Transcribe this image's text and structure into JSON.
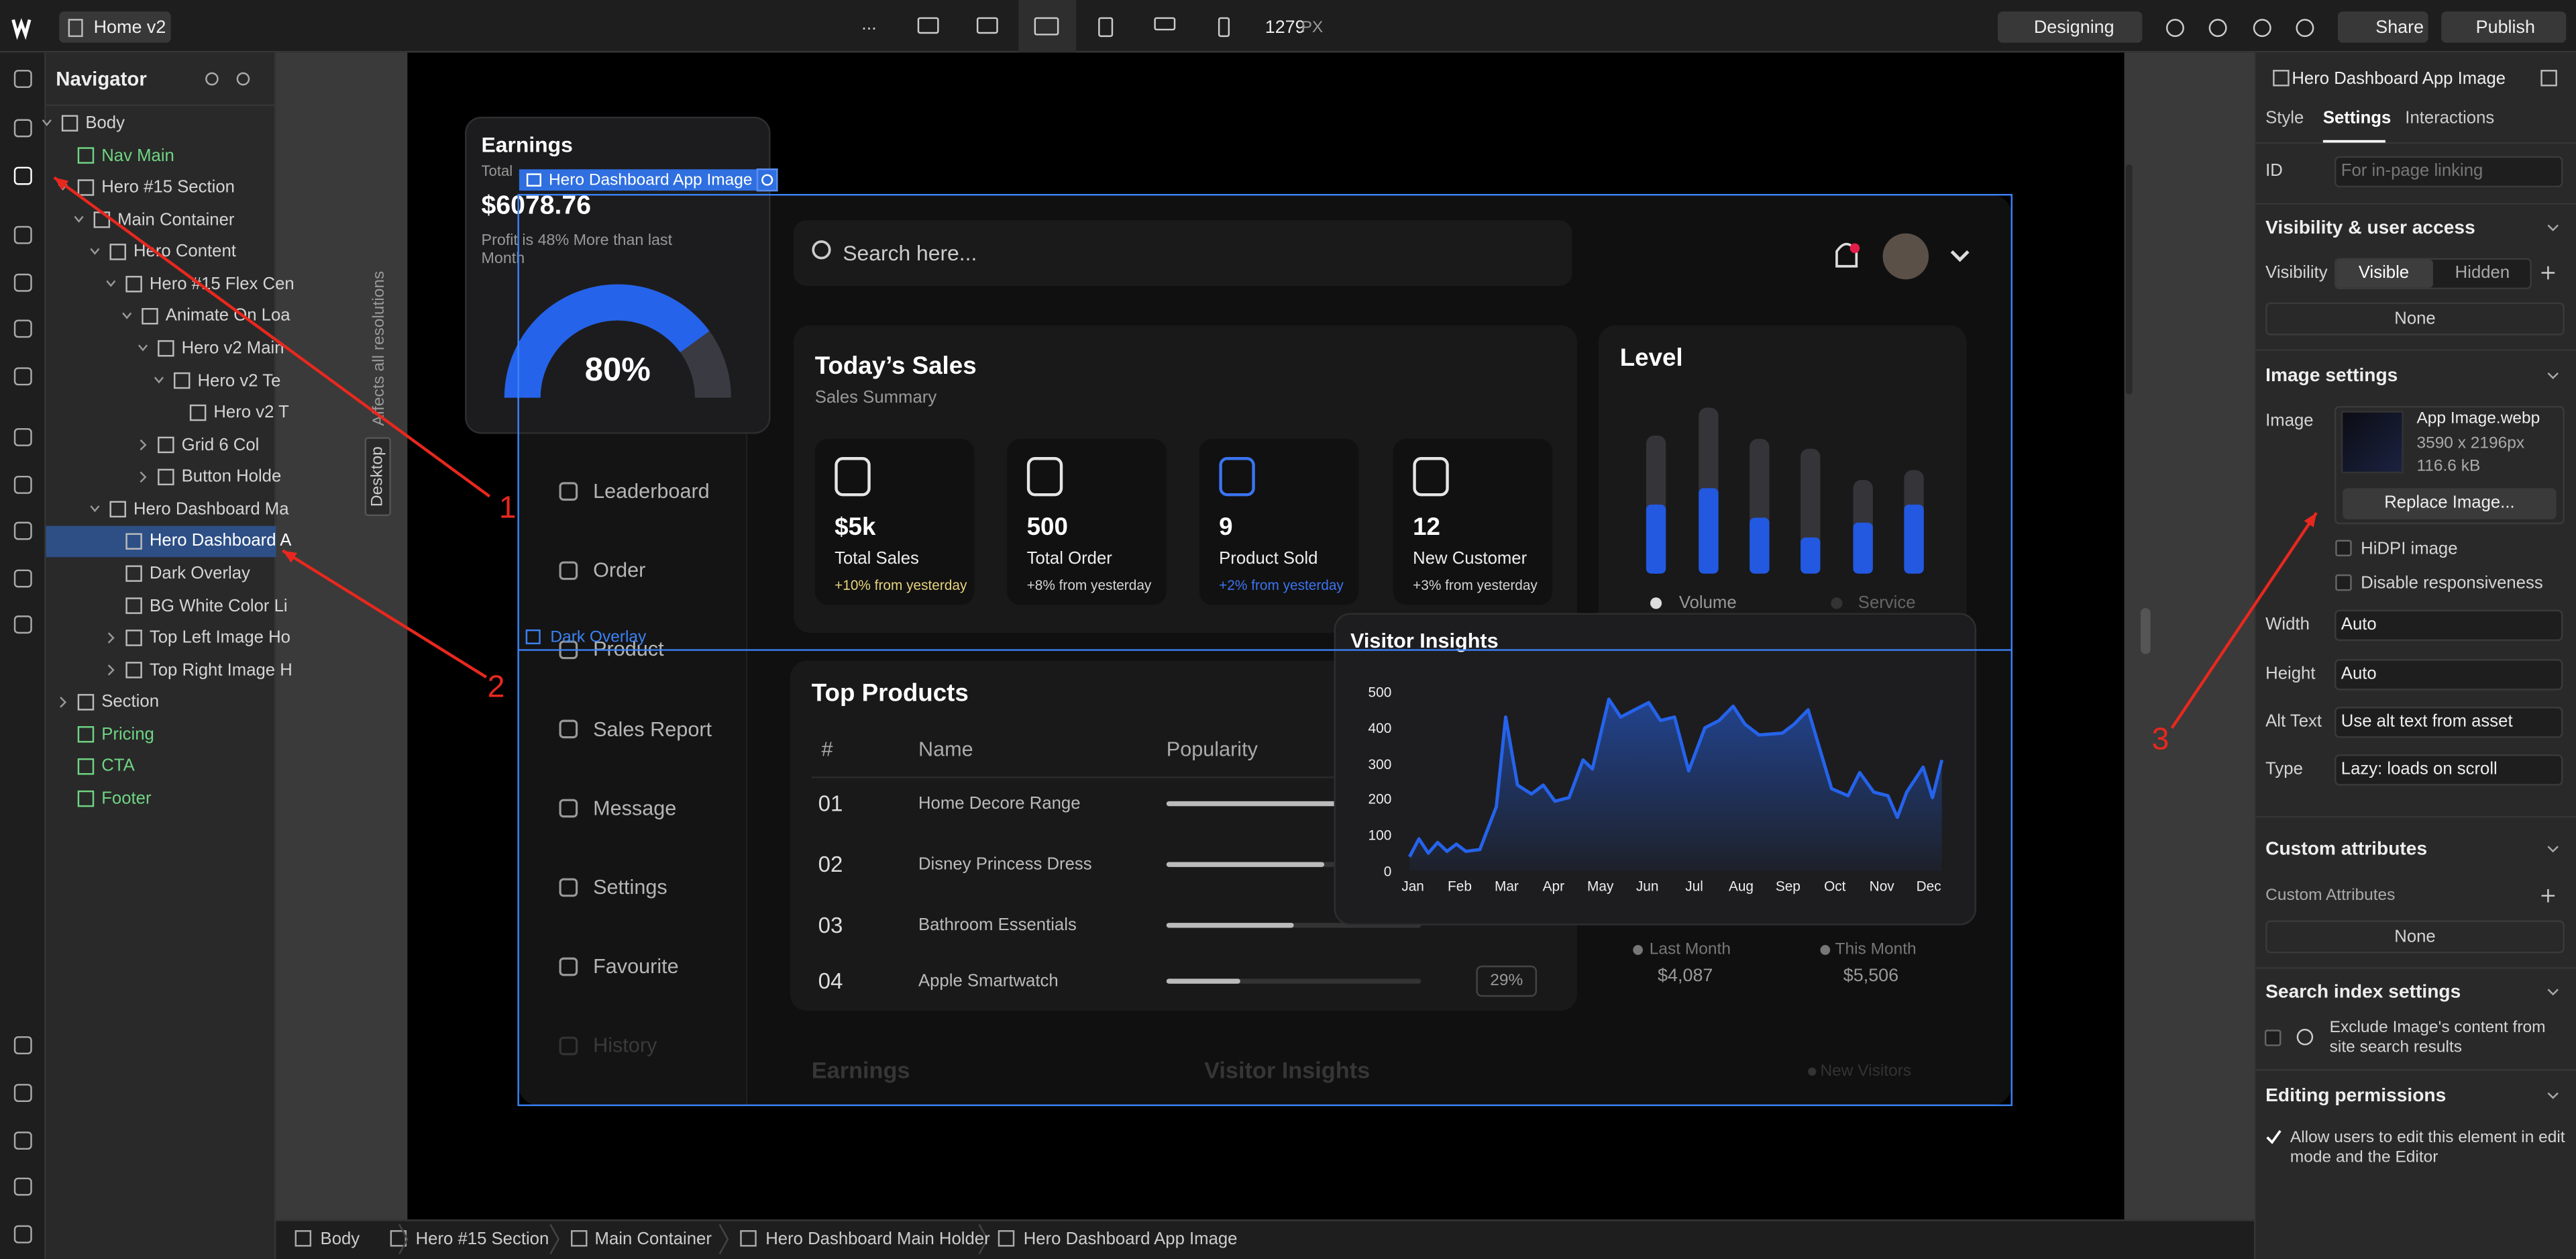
{
  "topbar": {
    "file": "Home v2",
    "more": "...",
    "width": "1279",
    "unit": "PX",
    "mode": "Designing",
    "share": "Share",
    "publish": "Publish"
  },
  "navigator": {
    "title": "Navigator",
    "tree": {
      "label": "Body",
      "children": [
        {
          "label": "Nav Main",
          "color": "#6fd483"
        },
        {
          "label": "Hero #15 Section",
          "children": [
            {
              "label": "Main Container",
              "children": [
                {
                  "label": "Hero Content",
                  "children": [
                    {
                      "label": "Hero #15 Flex Cen",
                      "children": [
                        {
                          "label": "Animate On Loa",
                          "children": [
                            {
                              "label": "Hero v2 Main",
                              "children": [
                                {
                                  "label": "Hero v2 Te",
                                  "children": [
                                    {
                                      "label": "Hero v2 T"
                                    }
                                  ]
                                }
                              ]
                            },
                            {
                              "label": "Grid 6 Col",
                              "collapsed": true
                            },
                            {
                              "label": "Button Holde",
                              "collapsed": true
                            }
                          ]
                        }
                      ]
                    }
                  ]
                },
                {
                  "label": "Hero Dashboard Ma",
                  "children": [
                    {
                      "label": "Hero Dashboard A",
                      "selected": true
                    },
                    {
                      "label": "Dark Overlay"
                    },
                    {
                      "label": "BG White Color Li"
                    },
                    {
                      "label": "Top Left Image Ho",
                      "collapsed": true
                    },
                    {
                      "label": "Top Right Image H",
                      "collapsed": true
                    }
                  ]
                }
              ]
            }
          ]
        },
        {
          "label": "Section",
          "collapsed": true
        },
        {
          "label": "Pricing",
          "color": "#6fd483"
        },
        {
          "label": "CTA",
          "color": "#6fd483"
        },
        {
          "label": "Footer",
          "color": "#6fd483"
        }
      ]
    }
  },
  "canvas": {
    "side_note": "Affects all resolutions",
    "breakpoint": "Desktop",
    "selected_tag": "Hero Dashboard App Image",
    "overlay_tag": "Dark Overlay",
    "dashboard": {
      "earnings": {
        "title": "Earnings",
        "subtitle": "Total",
        "amount": "$6078.76",
        "note": "Profit is 48% More than last Month",
        "gauge": {
          "value": 80,
          "label": "80%",
          "range": [
            0,
            100
          ]
        }
      },
      "search": "Search here...",
      "sales": {
        "title": "Today’s Sales",
        "subtitle": "Sales Summary",
        "cards": [
          {
            "value": "$5k",
            "label": "Total Sales",
            "change": "+10% from yesterday",
            "color": "#e6d37c"
          },
          {
            "value": "500",
            "label": "Total Order",
            "change": "+8% from yesterday",
            "color": "#d4d4d4"
          },
          {
            "value": "9",
            "label": "Product Sold",
            "change": "+2% from yesterday",
            "color": "#3b74f0"
          },
          {
            "value": "12",
            "label": "New Customer",
            "change": "+3% from yesterday",
            "color": "#d4d4d4"
          }
        ]
      },
      "level": {
        "title": "Level",
        "total": [
          84,
          101,
          82,
          76,
          57,
          63
        ],
        "volume": [
          42,
          52,
          34,
          22,
          31,
          42
        ],
        "legend": [
          "Volume",
          "Service"
        ]
      },
      "menu": [
        "Leaderboard",
        "Order",
        "Product",
        "Sales Report",
        "Message",
        "Settings",
        "Favourite",
        "History"
      ],
      "top_products": {
        "title": "Top Products",
        "columns": [
          "#",
          "Name",
          "Popularity"
        ],
        "rows": [
          [
            "01",
            "Home Decore Range"
          ],
          [
            "02",
            "Disney Princess Dress"
          ],
          [
            "03",
            "Bathroom Essentials"
          ],
          [
            "04",
            "Apple Smartwatch"
          ]
        ],
        "popularity": [
          70,
          62,
          50,
          29
        ],
        "popularity_labels": [
          null,
          null,
          null,
          "29%"
        ],
        "range": [
          0,
          100
        ]
      },
      "visitor_insights": {
        "type": "area",
        "title": "Visitor Insights",
        "months": [
          "Jan",
          "Feb",
          "Mar",
          "Apr",
          "May",
          "Jun",
          "Jul",
          "Aug",
          "Sep",
          "Oct",
          "Nov",
          "Dec"
        ],
        "ylim": [
          0,
          500
        ],
        "yticks": [
          0,
          100,
          200,
          300,
          400,
          500
        ],
        "xlim": [
          0,
          11.35
        ],
        "x": [
          0,
          0.2,
          0.4,
          0.6,
          0.8,
          1,
          1.2,
          1.5,
          1.85,
          2.05,
          2.3,
          2.6,
          2.85,
          3.1,
          3.4,
          3.7,
          3.9,
          4.25,
          4.5,
          4.8,
          5.1,
          5.35,
          5.65,
          5.95,
          6.3,
          6.6,
          6.9,
          7.15,
          7.45,
          7.95,
          8.2,
          8.5,
          9.0,
          9.35,
          9.6,
          9.9,
          10.2,
          10.4,
          10.6,
          10.95,
          11.15,
          11.35
        ],
        "values": [
          40,
          90,
          50,
          80,
          55,
          75,
          55,
          60,
          180,
          430,
          240,
          215,
          240,
          195,
          205,
          310,
          285,
          480,
          430,
          450,
          470,
          420,
          430,
          280,
          400,
          420,
          460,
          410,
          380,
          385,
          410,
          450,
          230,
          210,
          275,
          220,
          210,
          150,
          220,
          290,
          205,
          310
        ],
        "color": "#2563eb"
      },
      "stats": {
        "last_label": "Last Month",
        "this_label": "This Month",
        "last_value": "$4,087",
        "this_value": "$5,506"
      },
      "faded": {
        "earnings": "Earnings",
        "visitors": "Visitor Insights",
        "new_visitors": "New Visitors"
      }
    }
  },
  "annotations": [
    "1",
    "2",
    "3"
  ],
  "settings": {
    "element": "Hero Dashboard App Image",
    "tabs": [
      "Style",
      "Settings",
      "Interactions"
    ],
    "id_label": "ID",
    "id_placeholder": "For in-page linking",
    "visibility_section": "Visibility & user access",
    "visibility_label": "Visibility",
    "visibility_options": [
      "Visible",
      "Hidden"
    ],
    "visibility_none": "None",
    "image_section": "Image settings",
    "image_label": "Image",
    "file_name": "App Image.webp",
    "file_dims": "3590 x 2196px",
    "file_size": "116.6 kB",
    "replace": "Replace Image...",
    "checkboxes": [
      "HiDPI image",
      "Disable responsiveness"
    ],
    "fields": [
      {
        "label": "Width",
        "value": "Auto"
      },
      {
        "label": "Height",
        "value": "Auto"
      },
      {
        "label": "Alt Text",
        "value": "Use alt text from asset"
      },
      {
        "label": "Type",
        "value": "Lazy: loads on scroll"
      }
    ],
    "custom_section": "Custom attributes",
    "custom_label": "Custom Attributes",
    "custom_none": "None",
    "search_section": "Search index settings",
    "search_option": "Exclude Image's content from site search results",
    "editing_section": "Editing permissions",
    "editing_option": "Allow users to edit this element in edit mode and the Editor"
  },
  "breadcrumbs": [
    "Body",
    "Hero #15 Section",
    "Main Container",
    "Hero Dashboard Main Holder",
    "Hero Dashboard App Image"
  ]
}
